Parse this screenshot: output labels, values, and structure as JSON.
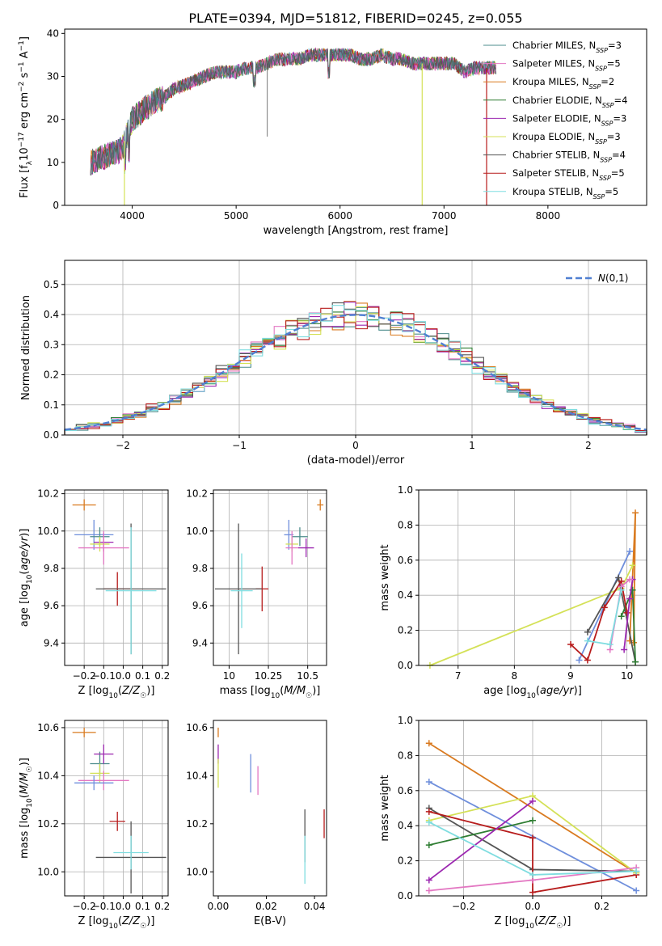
{
  "figure_title": "PLATE=0394, MJD=51812, FIBERID=0245, z=0.055",
  "chart_data": [
    {
      "id": "spectrum",
      "type": "line",
      "xlabel": "wavelength [Angstrom, rest frame]",
      "ylabel": "Flux [f_λ10^-17 erg cm^-2 s^-1 A^-1]",
      "xlim": [
        3350,
        8950
      ],
      "ylim": [
        0,
        41
      ],
      "xticks": [
        4000,
        5000,
        6000,
        7000,
        8000
      ],
      "yticks": [
        0,
        10,
        20,
        30,
        40
      ],
      "grid": false,
      "legend": "top-right",
      "spectrum_shape": {
        "x": [
          3600,
          3700,
          3800,
          3900,
          4000,
          4100,
          4200,
          4300,
          4400,
          4500,
          4600,
          4700,
          4800,
          4900,
          5000,
          5100,
          5200,
          5300,
          5400,
          5500,
          5600,
          5700,
          5800,
          5900,
          6000,
          6100,
          6200,
          6300,
          6400,
          6500,
          6600,
          6700,
          6800,
          6900,
          7000,
          7100,
          7200,
          7300,
          7400,
          7500
        ],
        "y": [
          10,
          11,
          12,
          13,
          20,
          22,
          24,
          25,
          27,
          28,
          29,
          30,
          31,
          31,
          31,
          32,
          32,
          33,
          34,
          34,
          34,
          35,
          35,
          35,
          35,
          35,
          34,
          34,
          35,
          34,
          34,
          33,
          33,
          33,
          33,
          33,
          31,
          32,
          32,
          32
        ]
      },
      "series": [
        {
          "name": "Chabrier MILES, N_SSP=3",
          "color": "#4c8c8c"
        },
        {
          "name": "Salpeter MILES, N_SSP=5",
          "color": "#e377c2"
        },
        {
          "name": "Kroupa MILES, N_SSP=2",
          "color": "#d97a1f"
        },
        {
          "name": "Chabrier ELODIE, N_SSP=4",
          "color": "#2e7d32"
        },
        {
          "name": "Salpeter ELODIE, N_SSP=3",
          "color": "#9c27b0"
        },
        {
          "name": "Kroupa ELODIE, N_SSP=3",
          "color": "#d4e157"
        },
        {
          "name": "Chabrier STELIB, N_SSP=4",
          "color": "#555555"
        },
        {
          "name": "Salpeter STELIB, N_SSP=5",
          "color": "#b71c1c"
        },
        {
          "name": "Kroupa STELIB, N_SSP=5",
          "color": "#7fdde0"
        }
      ]
    },
    {
      "id": "residuals",
      "type": "area",
      "xlabel": "(data-model)/error",
      "ylabel": "Normed distribution",
      "xlim": [
        -2.5,
        2.5
      ],
      "ylim": [
        0,
        0.58
      ],
      "xticks": [
        -2,
        -1,
        0,
        1,
        2
      ],
      "yticks": [
        0.0,
        0.1,
        0.2,
        0.3,
        0.4,
        0.5
      ],
      "grid": true,
      "legend": "top-right",
      "legend_label": "N(0,1)",
      "bin_width": 0.1,
      "bin_start": -2.5,
      "bin_count": 50
    },
    {
      "id": "age_vs_Z",
      "type": "scatter",
      "xlabel": "Z [log10(Z/Z☉)]",
      "ylabel": "age  [log10(age/yr)]",
      "xlim": [
        -0.3,
        0.23
      ],
      "ylim": [
        9.28,
        10.22
      ],
      "xticks": [
        -0.2,
        -0.1,
        0.0,
        0.1,
        0.2
      ],
      "yticks": [
        9.4,
        9.6,
        9.8,
        10.0,
        10.2
      ],
      "grid": true,
      "points": [
        {
          "x": -0.2,
          "y": 10.14,
          "xerr": 0.06,
          "yerr": 0.03,
          "color": "#d97a1f"
        },
        {
          "x": -0.15,
          "y": 9.98,
          "xerr": 0.1,
          "yerr": 0.08,
          "color": "#6f8fdc"
        },
        {
          "x": -0.12,
          "y": 9.97,
          "xerr": 0.05,
          "yerr": 0.05,
          "color": "#4c8c8c"
        },
        {
          "x": -0.1,
          "y": 9.94,
          "xerr": 0.05,
          "yerr": 0.05,
          "color": "#9c27b0"
        },
        {
          "x": -0.12,
          "y": 9.93,
          "xerr": 0.05,
          "yerr": 0.04,
          "color": "#d4e157"
        },
        {
          "x": -0.1,
          "y": 9.91,
          "xerr": 0.13,
          "yerr": 0.09,
          "color": "#e377c2"
        },
        {
          "x": -0.03,
          "y": 9.69,
          "xerr": 0.07,
          "yerr": 0.09,
          "color": "#b71c1c"
        },
        {
          "x": 0.04,
          "y": 9.69,
          "xerr": 0.18,
          "yerr": 0.35,
          "color": "#555555"
        },
        {
          "x": 0.04,
          "y": 9.68,
          "xerr": 0.13,
          "yerr": 0.34,
          "color": "#7fdde0"
        }
      ]
    },
    {
      "id": "age_vs_mass",
      "type": "scatter",
      "xlabel": "mass [log10(M/M☉)]",
      "ylabel": "",
      "xlim": [
        9.9,
        10.62
      ],
      "ylim": [
        9.28,
        10.22
      ],
      "xticks": [
        10.0,
        10.25,
        10.5
      ],
      "yticks": [
        9.4,
        9.6,
        9.8,
        10.0,
        10.2
      ],
      "grid": true,
      "points": [
        {
          "x": 10.58,
          "y": 10.14,
          "xerr": 0.02,
          "yerr": 0.03,
          "color": "#d97a1f"
        },
        {
          "x": 10.38,
          "y": 9.98,
          "xerr": 0.03,
          "yerr": 0.08,
          "color": "#6f8fdc"
        },
        {
          "x": 10.45,
          "y": 9.97,
          "xerr": 0.05,
          "yerr": 0.05,
          "color": "#4c8c8c"
        },
        {
          "x": 10.49,
          "y": 9.91,
          "xerr": 0.05,
          "yerr": 0.05,
          "color": "#9c27b0"
        },
        {
          "x": 10.4,
          "y": 9.93,
          "xerr": 0.04,
          "yerr": 0.04,
          "color": "#d4e157"
        },
        {
          "x": 10.4,
          "y": 9.91,
          "xerr": 0.04,
          "yerr": 0.09,
          "color": "#e377c2"
        },
        {
          "x": 10.21,
          "y": 9.69,
          "xerr": 0.04,
          "yerr": 0.12,
          "color": "#b71c1c"
        },
        {
          "x": 10.06,
          "y": 9.69,
          "xerr": 0.15,
          "yerr": 0.35,
          "color": "#555555"
        },
        {
          "x": 10.08,
          "y": 9.68,
          "xerr": 0.07,
          "yerr": 0.2,
          "color": "#7fdde0"
        }
      ]
    },
    {
      "id": "massweight_vs_age",
      "type": "line",
      "xlabel": "age  [log10(age/yr)]",
      "ylabel": "mass weight",
      "xlim": [
        6.3,
        10.35
      ],
      "ylim": [
        0,
        1
      ],
      "xticks": [
        7,
        8,
        9,
        10
      ],
      "yticks": [
        0.0,
        0.2,
        0.4,
        0.6,
        0.8,
        1.0
      ],
      "grid": true,
      "series": [
        {
          "color": "#6f8fdc",
          "x": [
            9.15,
            10.05
          ],
          "y": [
            0.03,
            0.65
          ]
        },
        {
          "color": "#d97a1f",
          "x": [
            10.05,
            10.15,
            10.12
          ],
          "y": [
            0.14,
            0.87,
            0.13
          ]
        },
        {
          "color": "#d4e157",
          "x": [
            6.5,
            9.9,
            10.1
          ],
          "y": [
            0.0,
            0.44,
            0.57
          ]
        },
        {
          "color": "#555555",
          "x": [
            9.3,
            9.85,
            10.15
          ],
          "y": [
            0.19,
            0.5,
            0.02
          ]
        },
        {
          "color": "#2e7d32",
          "x": [
            9.9,
            10.1,
            10.15
          ],
          "y": [
            0.28,
            0.43,
            0.02
          ]
        },
        {
          "color": "#b71c1c",
          "x": [
            9.0,
            9.3,
            9.6,
            9.9,
            10.0
          ],
          "y": [
            0.12,
            0.03,
            0.33,
            0.48,
            0.3
          ]
        },
        {
          "color": "#9c27b0",
          "x": [
            9.95,
            10.05,
            10.1
          ],
          "y": [
            0.09,
            0.38,
            0.49
          ]
        },
        {
          "color": "#e377c2",
          "x": [
            9.7,
            9.9,
            10.05
          ],
          "y": [
            0.09,
            0.45,
            0.49
          ]
        },
        {
          "color": "#7fdde0",
          "x": [
            9.3,
            9.7,
            9.9
          ],
          "y": [
            0.14,
            0.12,
            0.43
          ]
        }
      ]
    },
    {
      "id": "mass_vs_Z",
      "type": "scatter",
      "xlabel": "Z [log10(Z/Z☉)]",
      "ylabel": "mass [log10(M/M☉)]",
      "xlim": [
        -0.3,
        0.23
      ],
      "ylim": [
        9.9,
        10.63
      ],
      "xticks": [
        -0.2,
        -0.1,
        0.0,
        0.1,
        0.2
      ],
      "yticks": [
        10.0,
        10.2,
        10.4,
        10.6
      ],
      "grid": true,
      "points": [
        {
          "x": -0.2,
          "y": 10.58,
          "xerr": 0.06,
          "yerr": 0.02,
          "color": "#d97a1f"
        },
        {
          "x": -0.12,
          "y": 10.45,
          "xerr": 0.05,
          "yerr": 0.05,
          "color": "#4c8c8c"
        },
        {
          "x": -0.1,
          "y": 10.49,
          "xerr": 0.05,
          "yerr": 0.04,
          "color": "#9c27b0"
        },
        {
          "x": -0.12,
          "y": 10.41,
          "xerr": 0.05,
          "yerr": 0.04,
          "color": "#d4e157"
        },
        {
          "x": -0.1,
          "y": 10.38,
          "xerr": 0.13,
          "yerr": 0.04,
          "color": "#e377c2"
        },
        {
          "x": -0.15,
          "y": 10.37,
          "xerr": 0.1,
          "yerr": 0.03,
          "color": "#6f8fdc"
        },
        {
          "x": -0.03,
          "y": 10.21,
          "xerr": 0.04,
          "yerr": 0.04,
          "color": "#b71c1c"
        },
        {
          "x": 0.04,
          "y": 10.06,
          "xerr": 0.18,
          "yerr": 0.15,
          "color": "#555555"
        },
        {
          "x": 0.04,
          "y": 10.08,
          "xerr": 0.09,
          "yerr": 0.07,
          "color": "#7fdde0"
        }
      ]
    },
    {
      "id": "mass_vs_ebv",
      "type": "scatter",
      "xlabel": "E(B-V)",
      "ylabel": "",
      "xlim": [
        -0.002,
        0.045
      ],
      "ylim": [
        9.9,
        10.63
      ],
      "xticks": [
        0.0,
        0.02,
        0.04
      ],
      "yticks": [
        10.0,
        10.2,
        10.4,
        10.6
      ],
      "grid": false,
      "points": [
        {
          "x": 0.0,
          "y": 10.58,
          "yerr": 0.02,
          "color": "#d97a1f"
        },
        {
          "x": 0.0,
          "y": 10.49,
          "yerr": 0.04,
          "color": "#9c27b0"
        },
        {
          "x": 0.0,
          "y": 10.41,
          "yerr": 0.06,
          "color": "#d4e157"
        },
        {
          "x": 0.0135,
          "y": 10.41,
          "yerr": 0.08,
          "color": "#6f8fdc"
        },
        {
          "x": 0.0165,
          "y": 10.38,
          "yerr": 0.06,
          "color": "#e377c2"
        },
        {
          "x": 0.036,
          "y": 10.15,
          "yerr": 0.11,
          "color": "#555555"
        },
        {
          "x": 0.036,
          "y": 10.05,
          "yerr": 0.1,
          "color": "#7fdde0"
        },
        {
          "x": 0.044,
          "y": 10.2,
          "yerr": 0.06,
          "color": "#b71c1c"
        }
      ]
    },
    {
      "id": "massweight_vs_Z",
      "type": "line",
      "xlabel": "Z [log10(Z/Z☉)]",
      "ylabel": "mass weight",
      "xlim": [
        -0.33,
        0.33
      ],
      "ylim": [
        0,
        1
      ],
      "xticks": [
        -0.2,
        0.0,
        0.2
      ],
      "yticks": [
        0.0,
        0.2,
        0.4,
        0.6,
        0.8,
        1.0
      ],
      "grid": true,
      "series": [
        {
          "color": "#d97a1f",
          "x": [
            -0.3,
            0.3
          ],
          "y": [
            0.87,
            0.13
          ]
        },
        {
          "color": "#6f8fdc",
          "x": [
            -0.3,
            0.3
          ],
          "y": [
            0.65,
            0.03
          ]
        },
        {
          "color": "#d4e157",
          "x": [
            -0.3,
            0.0,
            0.3
          ],
          "y": [
            0.43,
            0.57,
            0.13
          ]
        },
        {
          "color": "#555555",
          "x": [
            -0.3,
            0.0,
            0.3
          ],
          "y": [
            0.5,
            0.15,
            0.14
          ]
        },
        {
          "color": "#2e7d32",
          "x": [
            -0.3,
            0.0
          ],
          "y": [
            0.29,
            0.43
          ]
        },
        {
          "color": "#b71c1c",
          "x": [
            -0.3,
            0.0,
            0.0,
            0.3
          ],
          "y": [
            0.48,
            0.33,
            0.02,
            0.12
          ]
        },
        {
          "color": "#9c27b0",
          "x": [
            -0.3,
            0.0
          ],
          "y": [
            0.09,
            0.54
          ]
        },
        {
          "color": "#e377c2",
          "x": [
            -0.3,
            0.0,
            0.3
          ],
          "y": [
            0.03,
            0.09,
            0.16
          ]
        },
        {
          "color": "#7fdde0",
          "x": [
            -0.3,
            0.0,
            0.3
          ],
          "y": [
            0.42,
            0.12,
            0.14
          ]
        }
      ]
    }
  ]
}
